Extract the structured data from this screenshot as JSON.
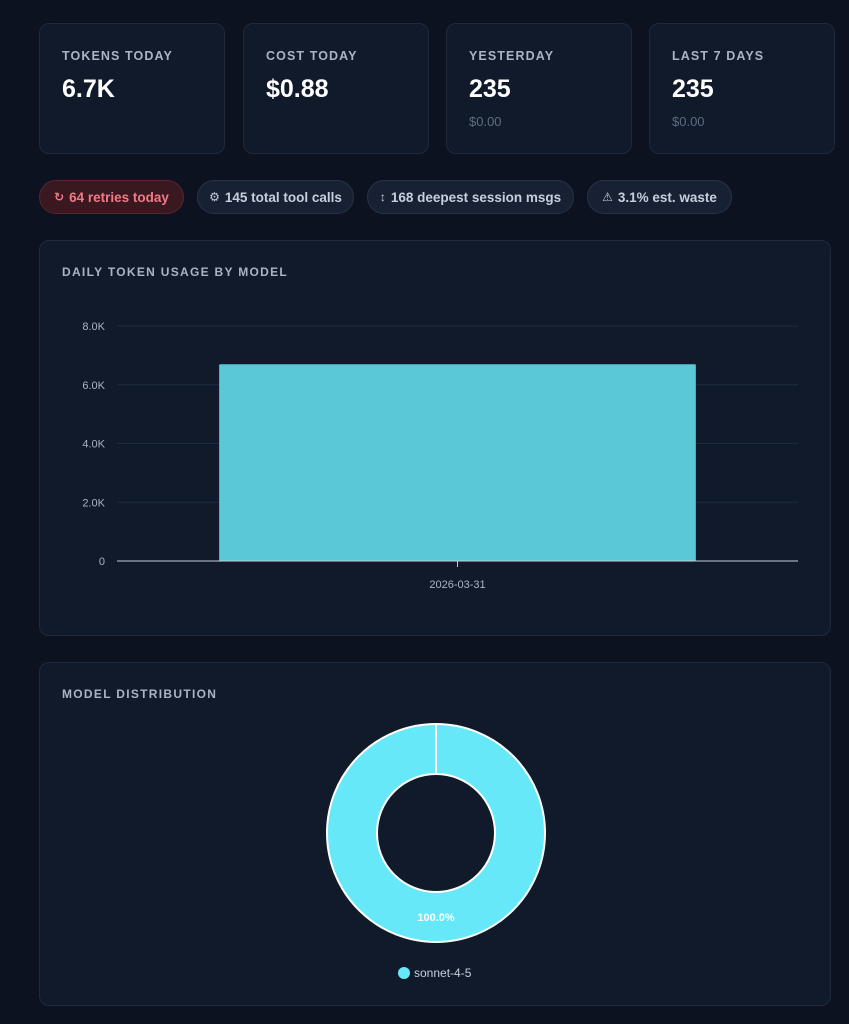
{
  "stats": [
    {
      "label": "TOKENS TODAY",
      "value": "6.7K",
      "sub": ""
    },
    {
      "label": "COST TODAY",
      "value": "$0.88",
      "sub": ""
    },
    {
      "label": "YESTERDAY",
      "value": "235",
      "sub": "$0.00"
    },
    {
      "label": "LAST 7 DAYS",
      "value": "235",
      "sub": "$0.00"
    }
  ],
  "pills": [
    {
      "icon": "retry-icon",
      "glyph": "↻",
      "text": "64 retries today",
      "variant": "alert"
    },
    {
      "icon": "tool-icon",
      "glyph": "⚙",
      "text": "145 total tool calls",
      "variant": "normal"
    },
    {
      "icon": "depth-icon",
      "glyph": "↕",
      "text": "168 deepest session msgs",
      "variant": "normal"
    },
    {
      "icon": "warning-icon",
      "glyph": "⚠",
      "text": "3.1% est. waste",
      "variant": "normal"
    }
  ],
  "daily_chart": {
    "title": "DAILY TOKEN USAGE BY MODEL"
  },
  "distribution_chart": {
    "title": "MODEL DISTRIBUTION"
  },
  "colors": {
    "bar": "#5bc8d8",
    "donut": "#67e8f9",
    "alert_text": "#f07a86"
  },
  "chart_data": [
    {
      "type": "bar",
      "title": "DAILY TOKEN USAGE BY MODEL",
      "categories": [
        "2026-03-31"
      ],
      "series": [
        {
          "values": [
            6700
          ]
        }
      ],
      "yticks": [
        "0",
        "2.0K",
        "4.0K",
        "6.0K",
        "8.0K"
      ],
      "ylim": [
        0,
        8000
      ],
      "grid": true,
      "xlabel": "",
      "ylabel": ""
    },
    {
      "type": "pie",
      "title": "MODEL DISTRIBUTION",
      "labels": [
        "sonnet-4-5"
      ],
      "values": [
        100.0
      ],
      "value_labels": [
        "100.0%"
      ],
      "legend": "bottom"
    }
  ]
}
